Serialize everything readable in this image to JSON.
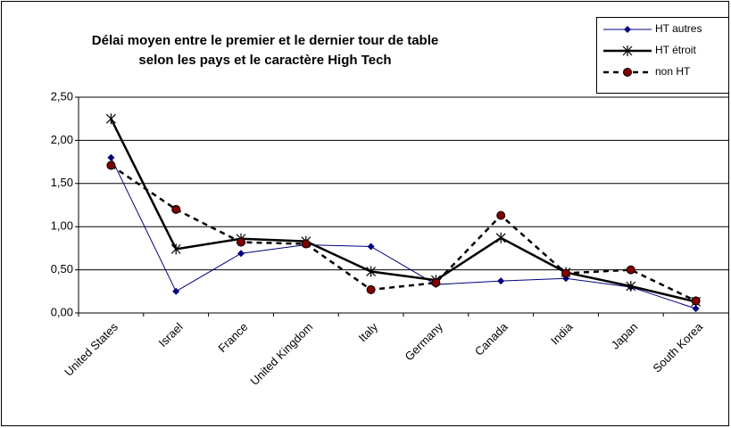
{
  "chart_data": {
    "type": "line",
    "title_lines": [
      "Délai moyen entre le premier et le dernier tour de table",
      "selon les pays et le caractère High Tech"
    ],
    "categories": [
      "United States",
      "Israel",
      "France",
      "United Kingdom",
      "Italy",
      "Germany",
      "Canada",
      "India",
      "Japan",
      "South Korea"
    ],
    "series": [
      {
        "name": "HT autres",
        "color": "#000080",
        "marker": "diamond",
        "line_width": 1,
        "dashed": false,
        "values": [
          1.8,
          0.25,
          0.69,
          0.79,
          0.77,
          0.33,
          0.37,
          0.4,
          0.3,
          0.05
        ]
      },
      {
        "name": "HT étroit",
        "color": "#000000",
        "marker": "asterisk",
        "line_width": 2.5,
        "dashed": false,
        "values": [
          2.25,
          0.74,
          0.86,
          0.83,
          0.48,
          0.38,
          0.87,
          0.47,
          0.31,
          0.13
        ]
      },
      {
        "name": "non HT",
        "color": "#800000",
        "marker": "circle",
        "line_width": 2.5,
        "dashed": true,
        "values": [
          1.71,
          1.2,
          0.82,
          0.8,
          0.27,
          0.35,
          1.13,
          0.46,
          0.5,
          0.14
        ]
      }
    ],
    "ylim": [
      0,
      2.5
    ],
    "yticks": [
      {
        "value": 0,
        "label": "0,00"
      },
      {
        "value": 0.5,
        "label": "0,50"
      },
      {
        "value": 1,
        "label": "1,00"
      },
      {
        "value": 1.5,
        "label": "1,50"
      },
      {
        "value": 2,
        "label": "2,00"
      },
      {
        "value": 2.5,
        "label": "2,50"
      }
    ],
    "grid": true,
    "legend": "top-right"
  }
}
